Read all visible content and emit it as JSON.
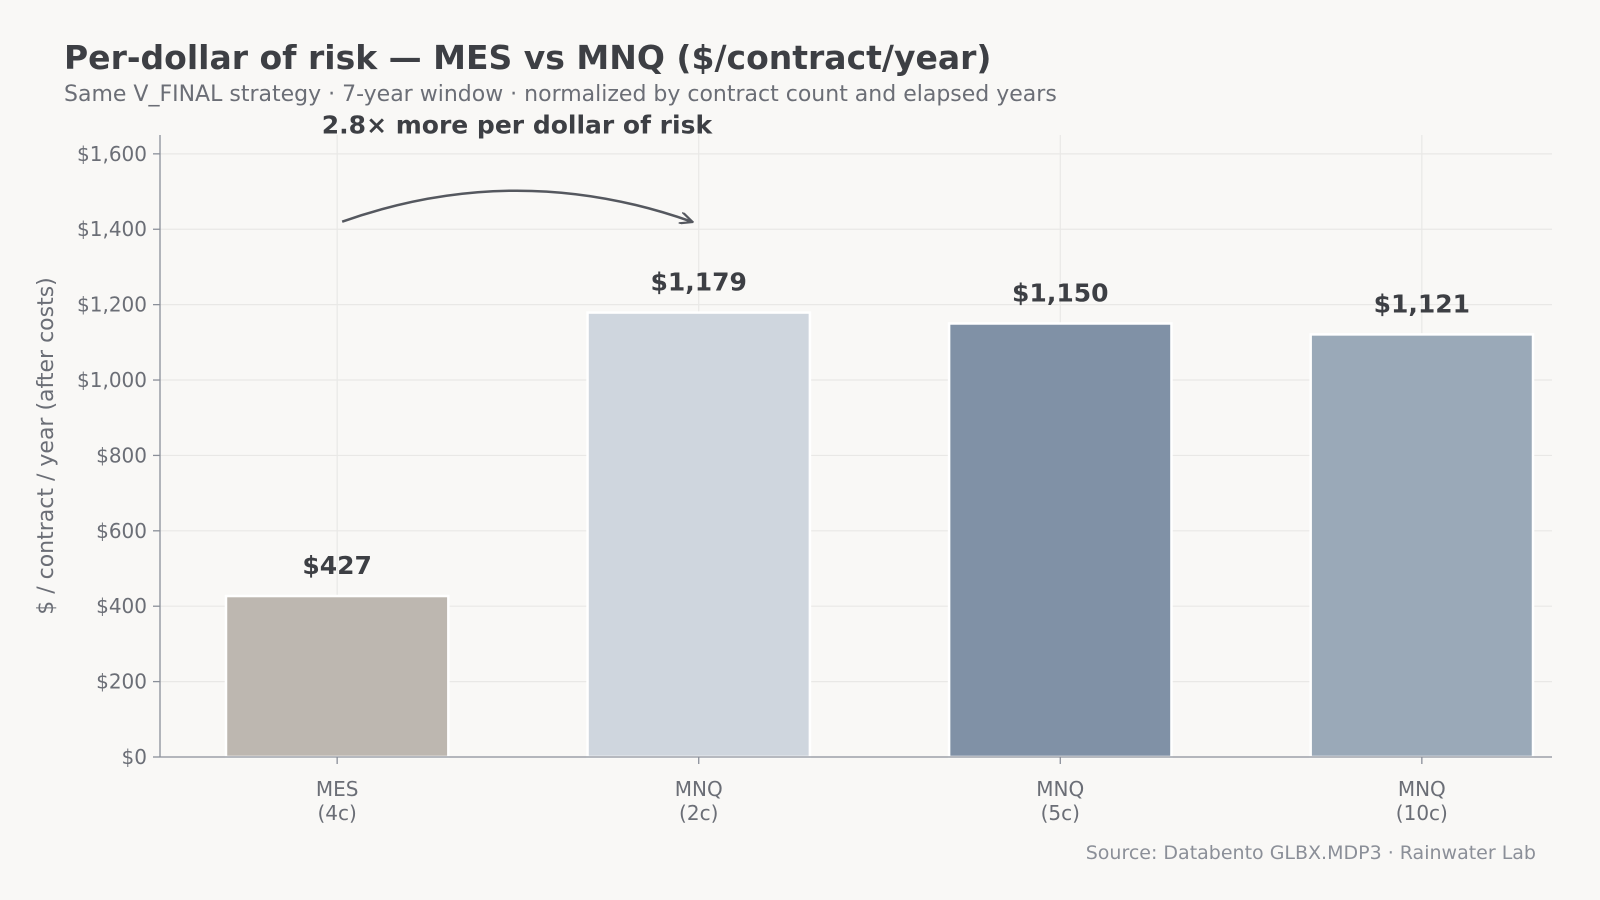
{
  "header": {
    "title": "Per-dollar of risk — MES vs MNQ ($/contract/year)",
    "subtitle": "Same V_FINAL strategy · 7-year window · normalized by contract count and elapsed years"
  },
  "footer": {
    "source": "Source: Databento GLBX.MDP3 · Rainwater Lab"
  },
  "chart_data": {
    "type": "bar",
    "title": "Per-dollar of risk — MES vs MNQ ($/contract/year)",
    "subtitle": "Same V_FINAL strategy · 7-year window · normalized by contract count and elapsed years",
    "categories": [
      [
        "MES",
        "(4c)"
      ],
      [
        "MNQ",
        "(2c)"
      ],
      [
        "MNQ",
        "(5c)"
      ],
      [
        "MNQ",
        "(10c)"
      ]
    ],
    "values": [
      427,
      1179,
      1150,
      1121
    ],
    "value_labels": [
      "$427",
      "$1,179",
      "$1,150",
      "$1,121"
    ],
    "bar_colors": [
      "#bdb7b0",
      "#cfd6de",
      "#8091a6",
      "#9aa9b8"
    ],
    "xlabel": "",
    "ylabel": "$ / contract / year (after costs)",
    "ylim": [
      0,
      1650
    ],
    "yticks": [
      0,
      200,
      400,
      600,
      800,
      1000,
      1200,
      1400,
      1600
    ],
    "ytick_labels": [
      "$0",
      "$200",
      "$400",
      "$600",
      "$800",
      "$1,000",
      "$1,200",
      "$1,400",
      "$1,600"
    ],
    "grid": true,
    "annotation": {
      "text": "2.8× more per dollar of risk",
      "from_category": 0,
      "to_category": 1,
      "y": 1420
    }
  },
  "colors": {
    "background": "#f9f8f6",
    "title": "#3d3f44",
    "subtitle": "#6b6e76",
    "tick_label": "#6b6e76",
    "axis": "#8a8f99",
    "grid": "#e9e8e6",
    "annotation": "#3d3f44",
    "arrow": "#55585f",
    "source": "#8b8f98"
  }
}
